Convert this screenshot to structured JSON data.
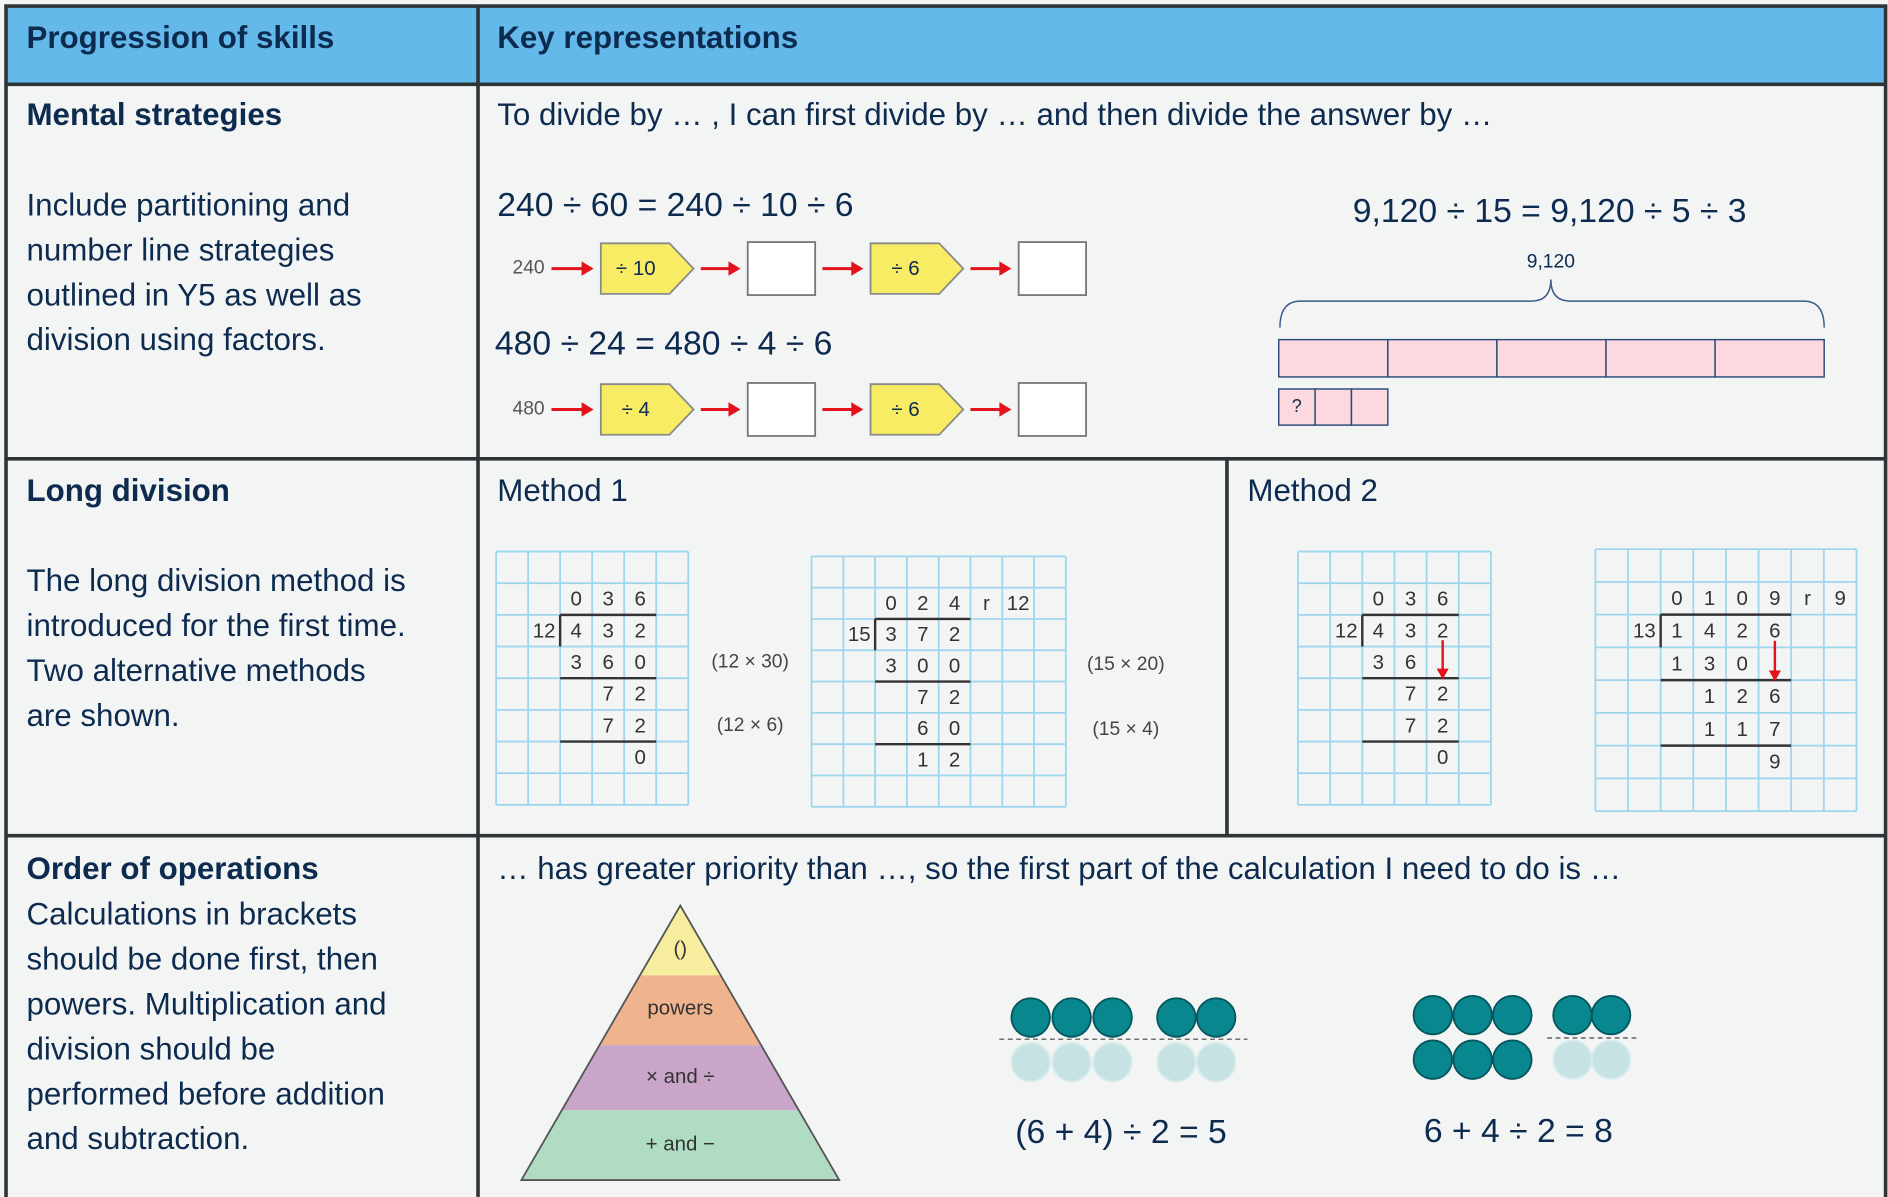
{
  "header": {
    "columns": [
      "Progression of skills",
      "Key representations"
    ]
  },
  "rows": [
    {
      "title": "Mental strategies",
      "description": [
        "Include partitioning and",
        "number line strategies",
        "outlined in Y5 as well as",
        "division using factors."
      ],
      "prompt": "To divide by … , I can first divide by … and then divide the answer by …",
      "examples": [
        {
          "equation": "240 ÷ 60 = 240 ÷ 10 ÷ 6",
          "start": "240",
          "steps": [
            "÷ 10",
            "÷ 6"
          ]
        },
        {
          "equation": "480 ÷ 24 = 480 ÷ 4 ÷ 6",
          "start": "480",
          "steps": [
            "÷ 4",
            "÷ 6"
          ]
        }
      ],
      "bar_model": {
        "equation": "9,120 ÷ 15 = 9,120 ÷ 5 ÷ 3",
        "whole": "9,120",
        "part": "?"
      }
    },
    {
      "title": "Long division",
      "description": [
        "The long division method is",
        "introduced for the first time.",
        "Two alternative methods",
        "are shown."
      ],
      "methods": [
        {
          "title": "Method 1",
          "grids": [
            {
              "cells": [
                [
                  null,
                  null,
                  null,
                  null,
                  null,
                  null
                ],
                [
                  null,
                  null,
                  "0",
                  "3",
                  "6",
                  null
                ],
                [
                  null,
                  "12",
                  "4",
                  "3",
                  "2",
                  null
                ],
                [
                  null,
                  null,
                  "3",
                  "6",
                  "0",
                  null
                ],
                [
                  null,
                  null,
                  null,
                  "7",
                  "2",
                  null
                ],
                [
                  null,
                  null,
                  null,
                  "7",
                  "2",
                  null
                ],
                [
                  null,
                  null,
                  null,
                  null,
                  "0",
                  null
                ],
                [
                  null,
                  null,
                  null,
                  null,
                  null,
                  null
                ]
              ],
              "notes": [
                "(12 × 30)",
                "(12 × 6)"
              ]
            },
            {
              "cells": [
                [
                  null,
                  null,
                  null,
                  null,
                  null,
                  null,
                  null,
                  null
                ],
                [
                  null,
                  null,
                  "0",
                  "2",
                  "4",
                  "r",
                  "12",
                  null
                ],
                [
                  null,
                  "15",
                  "3",
                  "7",
                  "2",
                  null,
                  null,
                  null
                ],
                [
                  null,
                  null,
                  "3",
                  "0",
                  "0",
                  null,
                  null,
                  null
                ],
                [
                  null,
                  null,
                  null,
                  "7",
                  "2",
                  null,
                  null,
                  null
                ],
                [
                  null,
                  null,
                  null,
                  "6",
                  "0",
                  null,
                  null,
                  null
                ],
                [
                  null,
                  null,
                  null,
                  "1",
                  "2",
                  null,
                  null,
                  null
                ],
                [
                  null,
                  null,
                  null,
                  null,
                  null,
                  null,
                  null,
                  null
                ]
              ],
              "notes": [
                "(15 × 20)",
                "(15 × 4)"
              ]
            }
          ]
        },
        {
          "title": "Method 2",
          "grids": [
            {
              "cells": [
                [
                  null,
                  null,
                  null,
                  null,
                  null,
                  null
                ],
                [
                  null,
                  null,
                  "0",
                  "3",
                  "6",
                  null
                ],
                [
                  null,
                  "12",
                  "4",
                  "3",
                  "2",
                  null
                ],
                [
                  null,
                  null,
                  "3",
                  "6",
                  null,
                  null
                ],
                [
                  null,
                  null,
                  null,
                  "7",
                  "2",
                  null
                ],
                [
                  null,
                  null,
                  null,
                  "7",
                  "2",
                  null
                ],
                [
                  null,
                  null,
                  null,
                  null,
                  "0",
                  null
                ],
                [
                  null,
                  null,
                  null,
                  null,
                  null,
                  null
                ]
              ]
            },
            {
              "cells": [
                [
                  null,
                  null,
                  null,
                  null,
                  null,
                  null,
                  null,
                  null
                ],
                [
                  null,
                  null,
                  "0",
                  "1",
                  "0",
                  "9",
                  "r",
                  "9"
                ],
                [
                  null,
                  "13",
                  "1",
                  "4",
                  "2",
                  "6",
                  null,
                  null
                ],
                [
                  null,
                  null,
                  "1",
                  "3",
                  "0",
                  null,
                  null,
                  null
                ],
                [
                  null,
                  null,
                  null,
                  "1",
                  "2",
                  "6",
                  null,
                  null
                ],
                [
                  null,
                  null,
                  null,
                  "1",
                  "1",
                  "7",
                  null,
                  null
                ],
                [
                  null,
                  null,
                  null,
                  null,
                  null,
                  "9",
                  null,
                  null
                ],
                [
                  null,
                  null,
                  null,
                  null,
                  null,
                  null,
                  null,
                  null
                ]
              ]
            }
          ]
        }
      ]
    },
    {
      "title": "Order of operations",
      "description": [
        "Calculations in brackets",
        "should be done first, then",
        "powers. Multiplication and",
        "division should be",
        "performed before addition",
        "and subtraction."
      ],
      "prompt": "… has greater priority than …, so the first part of the calculation I need to do is …",
      "pyramid": [
        "()",
        "powers",
        "× and ÷",
        "+ and −"
      ],
      "examples": [
        "(6 + 4) ÷ 2 = 5",
        "6 + 4 ÷ 2 = 8"
      ]
    }
  ]
}
